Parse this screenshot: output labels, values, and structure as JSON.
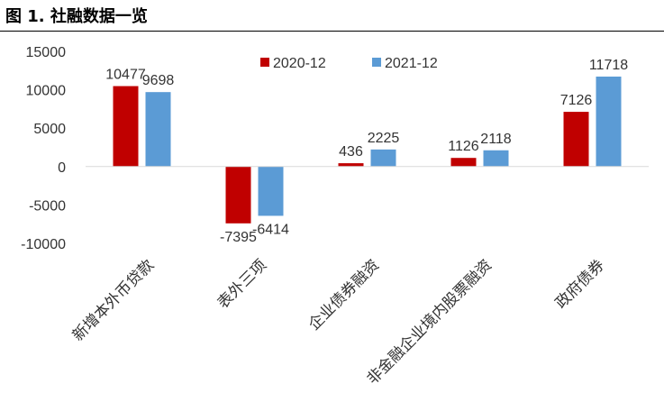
{
  "figure": {
    "title": "图 1. 社融数据一览"
  },
  "chart_data": {
    "type": "bar",
    "categories": [
      "新增本外币贷款",
      "表外三项",
      "企业债券融资",
      "非金融企业境内股票融资",
      "政府债券"
    ],
    "series": [
      {
        "name": "2020-12",
        "values": [
          10477,
          -7395,
          436,
          1126,
          7126
        ],
        "color": "#C00000"
      },
      {
        "name": "2021-12",
        "values": [
          9698,
          -6414,
          2225,
          2118,
          11718
        ],
        "color": "#5B9BD5"
      }
    ],
    "data_labels": [
      [
        "10477",
        "-7395",
        "436",
        "1126",
        "7126"
      ],
      [
        "9698",
        "-6414",
        "2225",
        "2118",
        "11718"
      ]
    ],
    "ylim": [
      -10000,
      15000
    ],
    "yticks": [
      "15000",
      "10000",
      "5000",
      "0",
      "-5000",
      "-10000"
    ],
    "ytick_values": [
      15000,
      10000,
      5000,
      0,
      -5000,
      -10000
    ],
    "legend_position": "top-center",
    "grid": false
  }
}
